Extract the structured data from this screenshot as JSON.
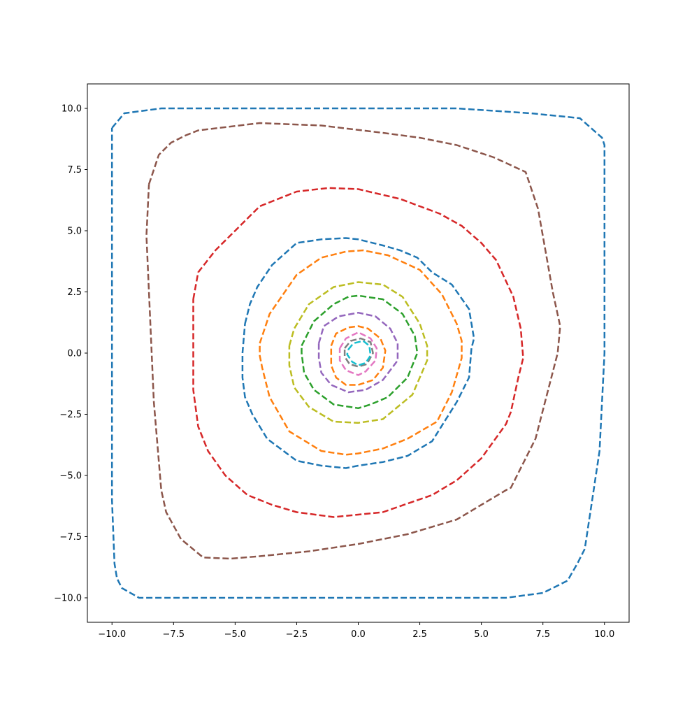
{
  "chart_data": {
    "type": "line",
    "title": "",
    "xlabel": "",
    "ylabel": "",
    "xlim": [
      -11,
      11
    ],
    "ylim": [
      -11,
      11
    ],
    "xticks": [
      -10,
      -7.5,
      -5,
      -2.5,
      0,
      2.5,
      5,
      7.5,
      10
    ],
    "yticks": [
      -10,
      -7.5,
      -5,
      -2.5,
      0,
      2.5,
      5,
      7.5,
      10
    ],
    "xtick_labels": [
      "−10.0",
      "−7.5",
      "−5.0",
      "−2.5",
      "0.0",
      "2.5",
      "5.0",
      "7.5",
      "10.0"
    ],
    "ytick_labels": [
      "−10.0",
      "−7.5",
      "−5.0",
      "−2.5",
      "0.0",
      "2.5",
      "5.0",
      "7.5",
      "10.0"
    ],
    "grid": false,
    "line_style": "dashed",
    "series": [
      {
        "color": "#1f77b4",
        "x": [
          -10,
          -9.5,
          -8,
          -5,
          0,
          4,
          7,
          9,
          9.9,
          10,
          10,
          9.8,
          9.5,
          9.2,
          8.9,
          8.5,
          7.5,
          6,
          0,
          -5,
          -8.9,
          -9.6,
          -9.8,
          -9.9,
          -10,
          -10
        ],
        "y": [
          9.2,
          9.8,
          10,
          10,
          10,
          10,
          9.8,
          9.6,
          8.8,
          8.5,
          0,
          -4,
          -6,
          -8,
          -8.6,
          -9.3,
          -9.8,
          -10,
          -10,
          -10,
          -10,
          -9.6,
          -9.2,
          -8.6,
          -6,
          9.2
        ]
      },
      {
        "color": "#8c564b",
        "x": [
          -8.5,
          -8.1,
          -7.6,
          -7,
          -6.5,
          -4,
          -1.5,
          1,
          2.5,
          4,
          5.5,
          6.8,
          7.3,
          7.9,
          8.2,
          8.1,
          7.2,
          6.2,
          6,
          4,
          2,
          0,
          -2,
          -4,
          -5.2,
          -6.3,
          -7.2,
          -7.8,
          -8,
          -8.3,
          -8.6,
          -8.5
        ],
        "y": [
          6.9,
          8.1,
          8.6,
          8.9,
          9.1,
          9.4,
          9.3,
          9,
          8.8,
          8.5,
          8,
          7.4,
          5.9,
          2.5,
          1.1,
          0,
          -3.5,
          -5.5,
          -5.6,
          -6.8,
          -7.4,
          -7.8,
          -8.1,
          -8.3,
          -8.4,
          -8.35,
          -7.6,
          -6.5,
          -5.6,
          -2,
          4.8,
          6.9
        ]
      },
      {
        "color": "#d62728",
        "x": [
          -6.7,
          -6.5,
          -5.8,
          -5,
          -4.7,
          -4,
          -2.5,
          -1.2,
          0,
          1.7,
          2.5,
          3.3,
          4.2,
          5,
          5.6,
          6.3,
          6.6,
          6.7,
          6.5,
          6.2,
          6,
          5,
          4,
          3,
          1,
          0,
          -1,
          -2.5,
          -3.5,
          -4.5,
          -5.4,
          -6.1,
          -6.5,
          -6.7,
          -6.7
        ],
        "y": [
          2.2,
          3.3,
          4.2,
          5,
          5.3,
          6,
          6.6,
          6.75,
          6.7,
          6.3,
          6,
          5.7,
          5.2,
          4.5,
          3.8,
          2.3,
          1,
          -0.2,
          -1,
          -2.4,
          -2.9,
          -4.3,
          -5.2,
          -5.8,
          -6.5,
          -6.6,
          -6.7,
          -6.5,
          -6.2,
          -5.8,
          -5,
          -4,
          -3,
          -1.5,
          2.2
        ]
      },
      {
        "color": "#1f77b4",
        "x": [
          -4.6,
          -4.4,
          -4.1,
          -3.5,
          -2.5,
          -1.5,
          -0.5,
          0,
          1,
          1.7,
          2.4,
          3,
          3.8,
          4.5,
          4.7,
          4.6,
          4.5,
          4,
          3,
          2,
          1,
          0,
          -0.5,
          -1.5,
          -2.5,
          -3.7,
          -4.3,
          -4.6,
          -4.7,
          -4.7,
          -4.6
        ],
        "y": [
          1.2,
          2,
          2.7,
          3.6,
          4.5,
          4.65,
          4.7,
          4.65,
          4.4,
          4.2,
          3.9,
          3.3,
          2.8,
          1.8,
          0.6,
          0.2,
          -1,
          -2,
          -3.6,
          -4.2,
          -4.45,
          -4.6,
          -4.7,
          -4.6,
          -4.4,
          -3.5,
          -2.5,
          -1.8,
          -1,
          0,
          1.2
        ]
      },
      {
        "color": "#ff7f0e",
        "x": [
          -4,
          -3.6,
          -2.5,
          -1.5,
          -0.5,
          0.2,
          1.2,
          2.5,
          3.4,
          4,
          4.2,
          4.2,
          3.8,
          3.2,
          2,
          1,
          0,
          -0.5,
          -1.5,
          -2.8,
          -3.6,
          -3.9,
          -4,
          -4
        ],
        "y": [
          0.4,
          1.6,
          3.2,
          3.9,
          4.15,
          4.2,
          4,
          3.4,
          2.4,
          1.2,
          0.5,
          -0.2,
          -1.6,
          -2.8,
          -3.5,
          -3.9,
          -4.1,
          -4.15,
          -4,
          -3.2,
          -1.8,
          -0.6,
          -0.1,
          0.4
        ]
      },
      {
        "color": "#bcbd22",
        "x": [
          -2.8,
          -2.6,
          -2,
          -1,
          0,
          1,
          1.8,
          2.5,
          2.8,
          2.8,
          2.2,
          1,
          0,
          -1,
          -2,
          -2.6,
          -2.8,
          -2.8
        ],
        "y": [
          0.3,
          1,
          2,
          2.7,
          2.9,
          2.8,
          2.3,
          1.2,
          0.3,
          -0.3,
          -1.7,
          -2.7,
          -2.85,
          -2.8,
          -2.2,
          -1.4,
          -0.5,
          0.3
        ]
      },
      {
        "color": "#2ca02c",
        "x": [
          -2.3,
          -1.8,
          -1,
          -0.4,
          0,
          1,
          1.8,
          2.3,
          2.4,
          2,
          1.2,
          0.5,
          0,
          -1,
          -1.8,
          -2.2,
          -2.3,
          -2.3
        ],
        "y": [
          0.3,
          1.3,
          2,
          2.3,
          2.35,
          2.2,
          1.6,
          0.7,
          0,
          -1,
          -1.8,
          -2.1,
          -2.25,
          -2.1,
          -1.5,
          -0.8,
          0,
          0.3
        ]
      },
      {
        "color": "#9467bd",
        "x": [
          -1.6,
          -1.4,
          -0.8,
          0,
          0.7,
          1.3,
          1.6,
          1.6,
          1,
          0.3,
          -0.4,
          -1.1,
          -1.5,
          -1.6,
          -1.6
        ],
        "y": [
          0.4,
          1.1,
          1.5,
          1.65,
          1.5,
          1,
          0.4,
          -0.3,
          -1.1,
          -1.5,
          -1.6,
          -1.3,
          -0.8,
          -0.2,
          0.4
        ]
      },
      {
        "color": "#ff7f0e",
        "x": [
          -1.1,
          -0.9,
          -0.4,
          0,
          0.4,
          0.9,
          1.1,
          1,
          0.6,
          0,
          -0.5,
          -0.9,
          -1.1,
          -1.1
        ],
        "y": [
          0.3,
          0.8,
          1.05,
          1.1,
          1,
          0.6,
          0.1,
          -0.6,
          -1.1,
          -1.3,
          -1.3,
          -1,
          -0.5,
          0.3
        ]
      },
      {
        "color": "#e377c2",
        "x": [
          -0.75,
          -0.5,
          0,
          0.5,
          0.75,
          0.7,
          0.3,
          0,
          -0.5,
          -0.75,
          -0.75
        ],
        "y": [
          0.2,
          0.6,
          0.85,
          0.6,
          0.2,
          -0.3,
          -0.75,
          -0.9,
          -0.7,
          -0.3,
          0.2
        ]
      },
      {
        "color": "#7f7f7f",
        "x": [
          -0.55,
          -0.3,
          0.1,
          0.5,
          0.6,
          0.35,
          0,
          -0.35,
          -0.55,
          -0.55
        ],
        "y": [
          0.2,
          0.5,
          0.6,
          0.45,
          0,
          -0.45,
          -0.55,
          -0.45,
          -0.15,
          0.2
        ]
      },
      {
        "color": "#17becf",
        "x": [
          -0.4,
          -0.2,
          0.2,
          0.45,
          0.5,
          0.3,
          0,
          -0.25,
          -0.45,
          -0.4
        ],
        "y": [
          0.15,
          0.4,
          0.5,
          0.3,
          -0.1,
          -0.4,
          -0.5,
          -0.35,
          -0.05,
          0.15
        ]
      }
    ]
  }
}
